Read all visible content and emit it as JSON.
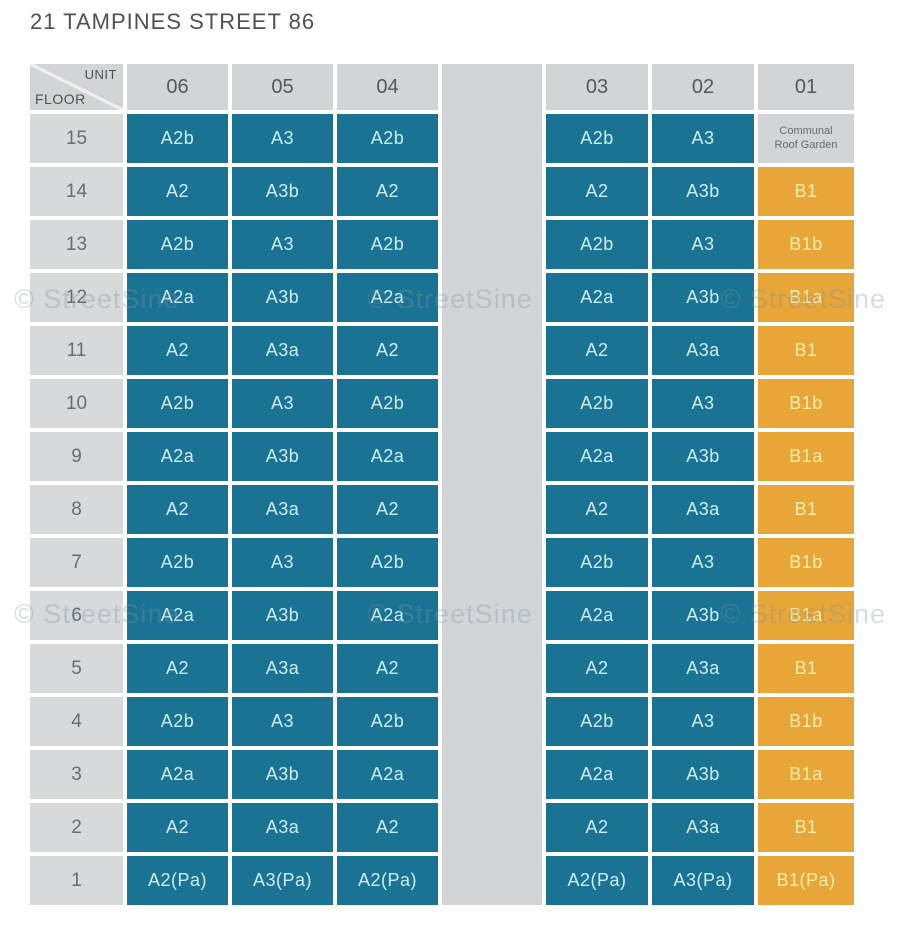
{
  "title": "21 TAMPINES STREET 86",
  "watermark": "© StreetSine",
  "axis": {
    "unit": "UNIT",
    "floor": "FLOOR"
  },
  "unit_columns": [
    "06",
    "05",
    "04",
    "03",
    "02",
    "01"
  ],
  "colors": {
    "unit_type_a_teal": "#1b7394",
    "unit_type_b_orange": "#e8a538",
    "header_gray": "#d3d4d6",
    "floor_column_gray": "#d8d9db",
    "teal_text": "#cbedf8",
    "orange_text": "#f8eda9",
    "gray_text": "#6b6c6f"
  },
  "floors": [
    {
      "floor": "15",
      "cells": [
        {
          "text": "A2b",
          "type": "blue"
        },
        {
          "text": "A3",
          "type": "blue"
        },
        {
          "text": "A2b",
          "type": "blue"
        },
        {
          "text": "A2b",
          "type": "blue"
        },
        {
          "text": "A3",
          "type": "blue"
        },
        {
          "text": "Communal Roof Garden",
          "type": "roof"
        }
      ]
    },
    {
      "floor": "14",
      "cells": [
        {
          "text": "A2",
          "type": "blue"
        },
        {
          "text": "A3b",
          "type": "blue"
        },
        {
          "text": "A2",
          "type": "blue"
        },
        {
          "text": "A2",
          "type": "blue"
        },
        {
          "text": "A3b",
          "type": "blue"
        },
        {
          "text": "B1",
          "type": "orange"
        }
      ]
    },
    {
      "floor": "13",
      "cells": [
        {
          "text": "A2b",
          "type": "blue"
        },
        {
          "text": "A3",
          "type": "blue"
        },
        {
          "text": "A2b",
          "type": "blue"
        },
        {
          "text": "A2b",
          "type": "blue"
        },
        {
          "text": "A3",
          "type": "blue"
        },
        {
          "text": "B1b",
          "type": "orange"
        }
      ]
    },
    {
      "floor": "12",
      "cells": [
        {
          "text": "A2a",
          "type": "blue"
        },
        {
          "text": "A3b",
          "type": "blue"
        },
        {
          "text": "A2a",
          "type": "blue"
        },
        {
          "text": "A2a",
          "type": "blue"
        },
        {
          "text": "A3b",
          "type": "blue"
        },
        {
          "text": "B1a",
          "type": "orange"
        }
      ]
    },
    {
      "floor": "11",
      "cells": [
        {
          "text": "A2",
          "type": "blue"
        },
        {
          "text": "A3a",
          "type": "blue"
        },
        {
          "text": "A2",
          "type": "blue"
        },
        {
          "text": "A2",
          "type": "blue"
        },
        {
          "text": "A3a",
          "type": "blue"
        },
        {
          "text": "B1",
          "type": "orange"
        }
      ]
    },
    {
      "floor": "10",
      "cells": [
        {
          "text": "A2b",
          "type": "blue"
        },
        {
          "text": "A3",
          "type": "blue"
        },
        {
          "text": "A2b",
          "type": "blue"
        },
        {
          "text": "A2b",
          "type": "blue"
        },
        {
          "text": "A3",
          "type": "blue"
        },
        {
          "text": "B1b",
          "type": "orange"
        }
      ]
    },
    {
      "floor": "9",
      "cells": [
        {
          "text": "A2a",
          "type": "blue"
        },
        {
          "text": "A3b",
          "type": "blue"
        },
        {
          "text": "A2a",
          "type": "blue"
        },
        {
          "text": "A2a",
          "type": "blue"
        },
        {
          "text": "A3b",
          "type": "blue"
        },
        {
          "text": "B1a",
          "type": "orange"
        }
      ]
    },
    {
      "floor": "8",
      "cells": [
        {
          "text": "A2",
          "type": "blue"
        },
        {
          "text": "A3a",
          "type": "blue"
        },
        {
          "text": "A2",
          "type": "blue"
        },
        {
          "text": "A2",
          "type": "blue"
        },
        {
          "text": "A3a",
          "type": "blue"
        },
        {
          "text": "B1",
          "type": "orange"
        }
      ]
    },
    {
      "floor": "7",
      "cells": [
        {
          "text": "A2b",
          "type": "blue"
        },
        {
          "text": "A3",
          "type": "blue"
        },
        {
          "text": "A2b",
          "type": "blue"
        },
        {
          "text": "A2b",
          "type": "blue"
        },
        {
          "text": "A3",
          "type": "blue"
        },
        {
          "text": "B1b",
          "type": "orange"
        }
      ]
    },
    {
      "floor": "6",
      "cells": [
        {
          "text": "A2a",
          "type": "blue"
        },
        {
          "text": "A3b",
          "type": "blue"
        },
        {
          "text": "A2a",
          "type": "blue"
        },
        {
          "text": "A2a",
          "type": "blue"
        },
        {
          "text": "A3b",
          "type": "blue"
        },
        {
          "text": "B1a",
          "type": "orange"
        }
      ]
    },
    {
      "floor": "5",
      "cells": [
        {
          "text": "A2",
          "type": "blue"
        },
        {
          "text": "A3a",
          "type": "blue"
        },
        {
          "text": "A2",
          "type": "blue"
        },
        {
          "text": "A2",
          "type": "blue"
        },
        {
          "text": "A3a",
          "type": "blue"
        },
        {
          "text": "B1",
          "type": "orange"
        }
      ]
    },
    {
      "floor": "4",
      "cells": [
        {
          "text": "A2b",
          "type": "blue"
        },
        {
          "text": "A3",
          "type": "blue"
        },
        {
          "text": "A2b",
          "type": "blue"
        },
        {
          "text": "A2b",
          "type": "blue"
        },
        {
          "text": "A3",
          "type": "blue"
        },
        {
          "text": "B1b",
          "type": "orange"
        }
      ]
    },
    {
      "floor": "3",
      "cells": [
        {
          "text": "A2a",
          "type": "blue"
        },
        {
          "text": "A3b",
          "type": "blue"
        },
        {
          "text": "A2a",
          "type": "blue"
        },
        {
          "text": "A2a",
          "type": "blue"
        },
        {
          "text": "A3b",
          "type": "blue"
        },
        {
          "text": "B1a",
          "type": "orange"
        }
      ]
    },
    {
      "floor": "2",
      "cells": [
        {
          "text": "A2",
          "type": "blue"
        },
        {
          "text": "A3a",
          "type": "blue"
        },
        {
          "text": "A2",
          "type": "blue"
        },
        {
          "text": "A2",
          "type": "blue"
        },
        {
          "text": "A3a",
          "type": "blue"
        },
        {
          "text": "B1",
          "type": "orange"
        }
      ]
    },
    {
      "floor": "1",
      "cells": [
        {
          "text": "A2(Pa)",
          "type": "blue"
        },
        {
          "text": "A3(Pa)",
          "type": "blue"
        },
        {
          "text": "A2(Pa)",
          "type": "blue"
        },
        {
          "text": "A2(Pa)",
          "type": "blue"
        },
        {
          "text": "A3(Pa)",
          "type": "blue"
        },
        {
          "text": "B1(Pa)",
          "type": "orange"
        }
      ]
    }
  ]
}
